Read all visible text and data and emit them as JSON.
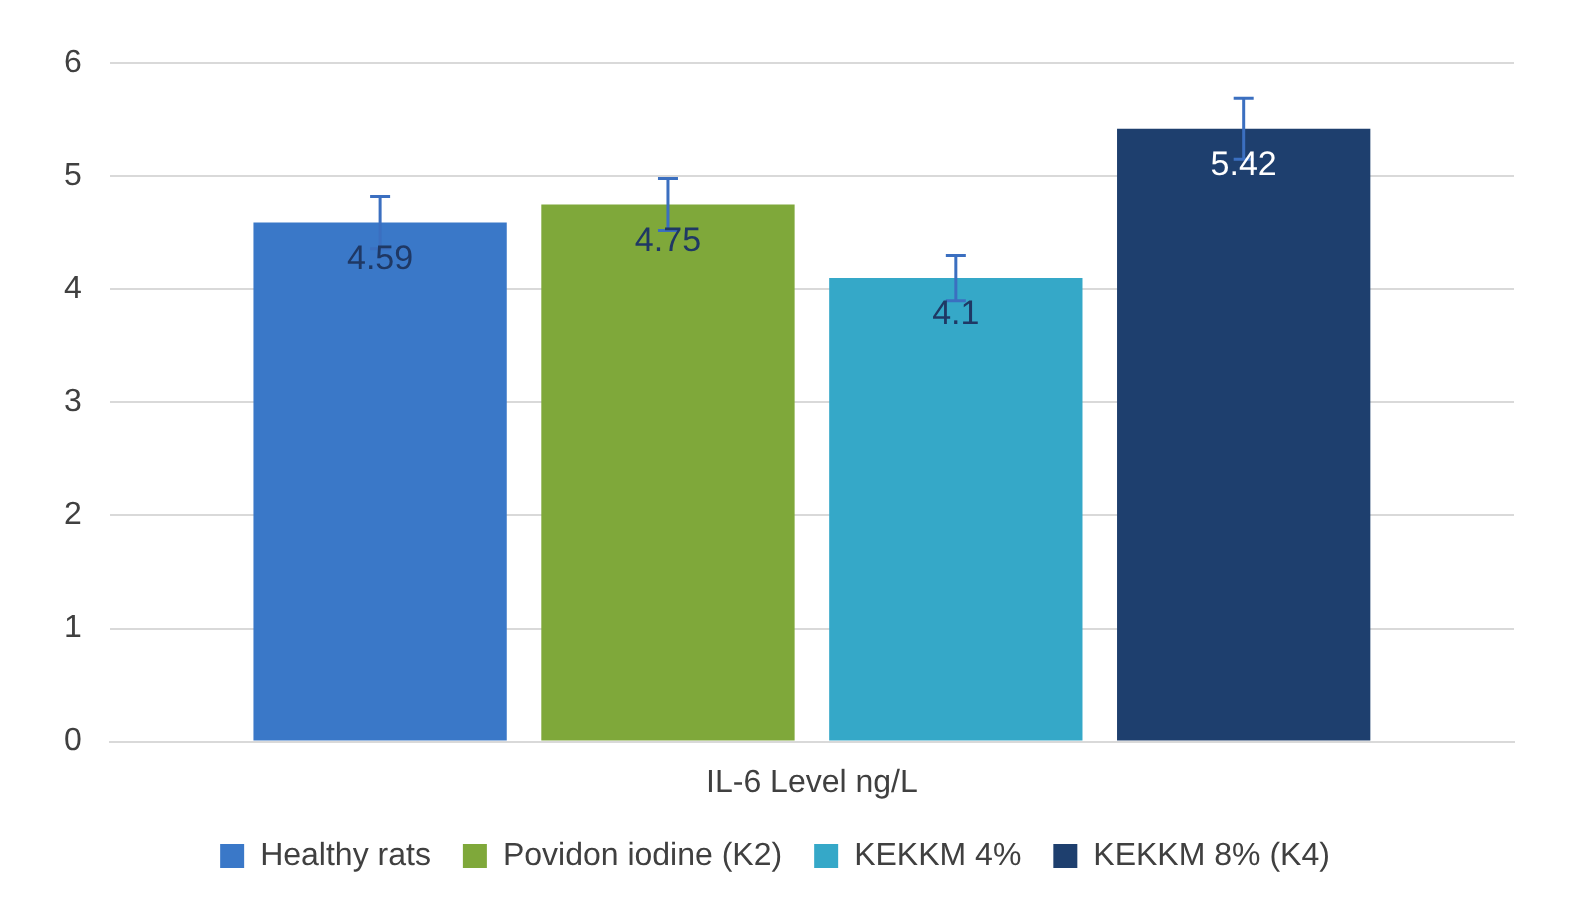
{
  "chart_data": {
    "type": "bar",
    "categories": [
      "IL-6 Level ng/L"
    ],
    "series": [
      {
        "name": "Healthy rats",
        "color": "#3a78c8",
        "values": [
          4.59
        ],
        "errors": [
          0.23
        ]
      },
      {
        "name": "Povidon iodine (K2)",
        "color": "#7fa83a",
        "values": [
          4.75
        ],
        "errors": [
          0.23
        ]
      },
      {
        "name": "KEKKM 4%",
        "color": "#35a8c8",
        "values": [
          4.1
        ],
        "errors": [
          0.2
        ]
      },
      {
        "name": "KEKKM 8% (K4)",
        "color": "#1e3f6e",
        "values": [
          5.42
        ],
        "errors": [
          0.27
        ]
      }
    ],
    "ylim": [
      0,
      6
    ],
    "yticks": [
      0,
      1,
      2,
      3,
      4,
      5,
      6
    ],
    "grid": "y",
    "legend": "bottom",
    "data_labels": true
  }
}
